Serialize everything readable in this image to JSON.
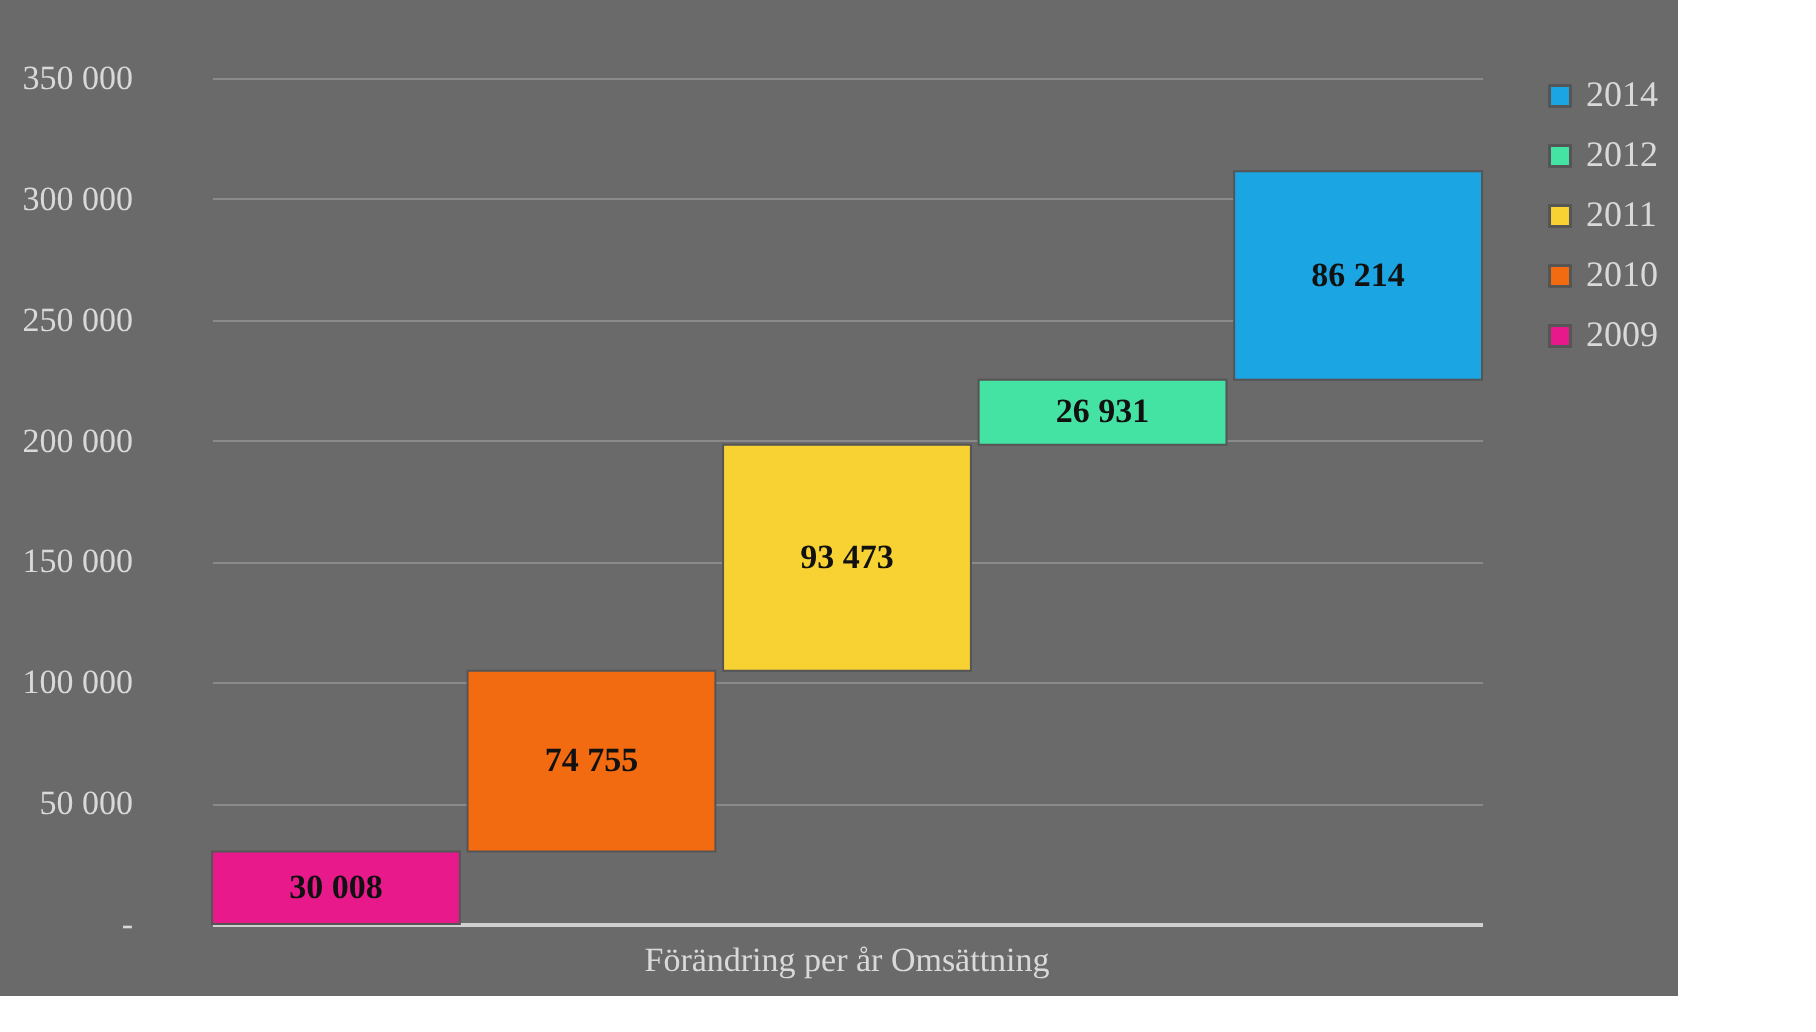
{
  "chart_data": {
    "type": "bar",
    "categories": [
      "Förändring per år Omsättning"
    ],
    "series": [
      {
        "name": "2009",
        "color": "#e8198b",
        "values": [
          30008
        ],
        "base": [
          0
        ],
        "value_labels": [
          "30 008"
        ]
      },
      {
        "name": "2010",
        "color": "#f26b10",
        "values": [
          74755
        ],
        "base": [
          30008
        ],
        "value_labels": [
          "74 755"
        ]
      },
      {
        "name": "2011",
        "color": "#f8d232",
        "values": [
          93473
        ],
        "base": [
          104763
        ],
        "value_labels": [
          "93 473"
        ]
      },
      {
        "name": "2012",
        "color": "#45e3a3",
        "values": [
          26931
        ],
        "base": [
          198236
        ],
        "value_labels": [
          "26 931"
        ]
      },
      {
        "name": "2014",
        "color": "#1ba5e2",
        "values": [
          86214
        ],
        "base": [
          225167
        ],
        "value_labels": [
          "86 214"
        ]
      }
    ],
    "ylim": [
      0,
      350000
    ],
    "yticks": [
      {
        "value": 0,
        "label": "-"
      },
      {
        "value": 50000,
        "label": "50 000"
      },
      {
        "value": 100000,
        "label": "100 000"
      },
      {
        "value": 150000,
        "label": "150 000"
      },
      {
        "value": 200000,
        "label": "200 000"
      },
      {
        "value": 250000,
        "label": "250 000"
      },
      {
        "value": 300000,
        "label": "300 000"
      },
      {
        "value": 350000,
        "label": "350 000"
      }
    ],
    "grid": "y",
    "legend": "right"
  }
}
